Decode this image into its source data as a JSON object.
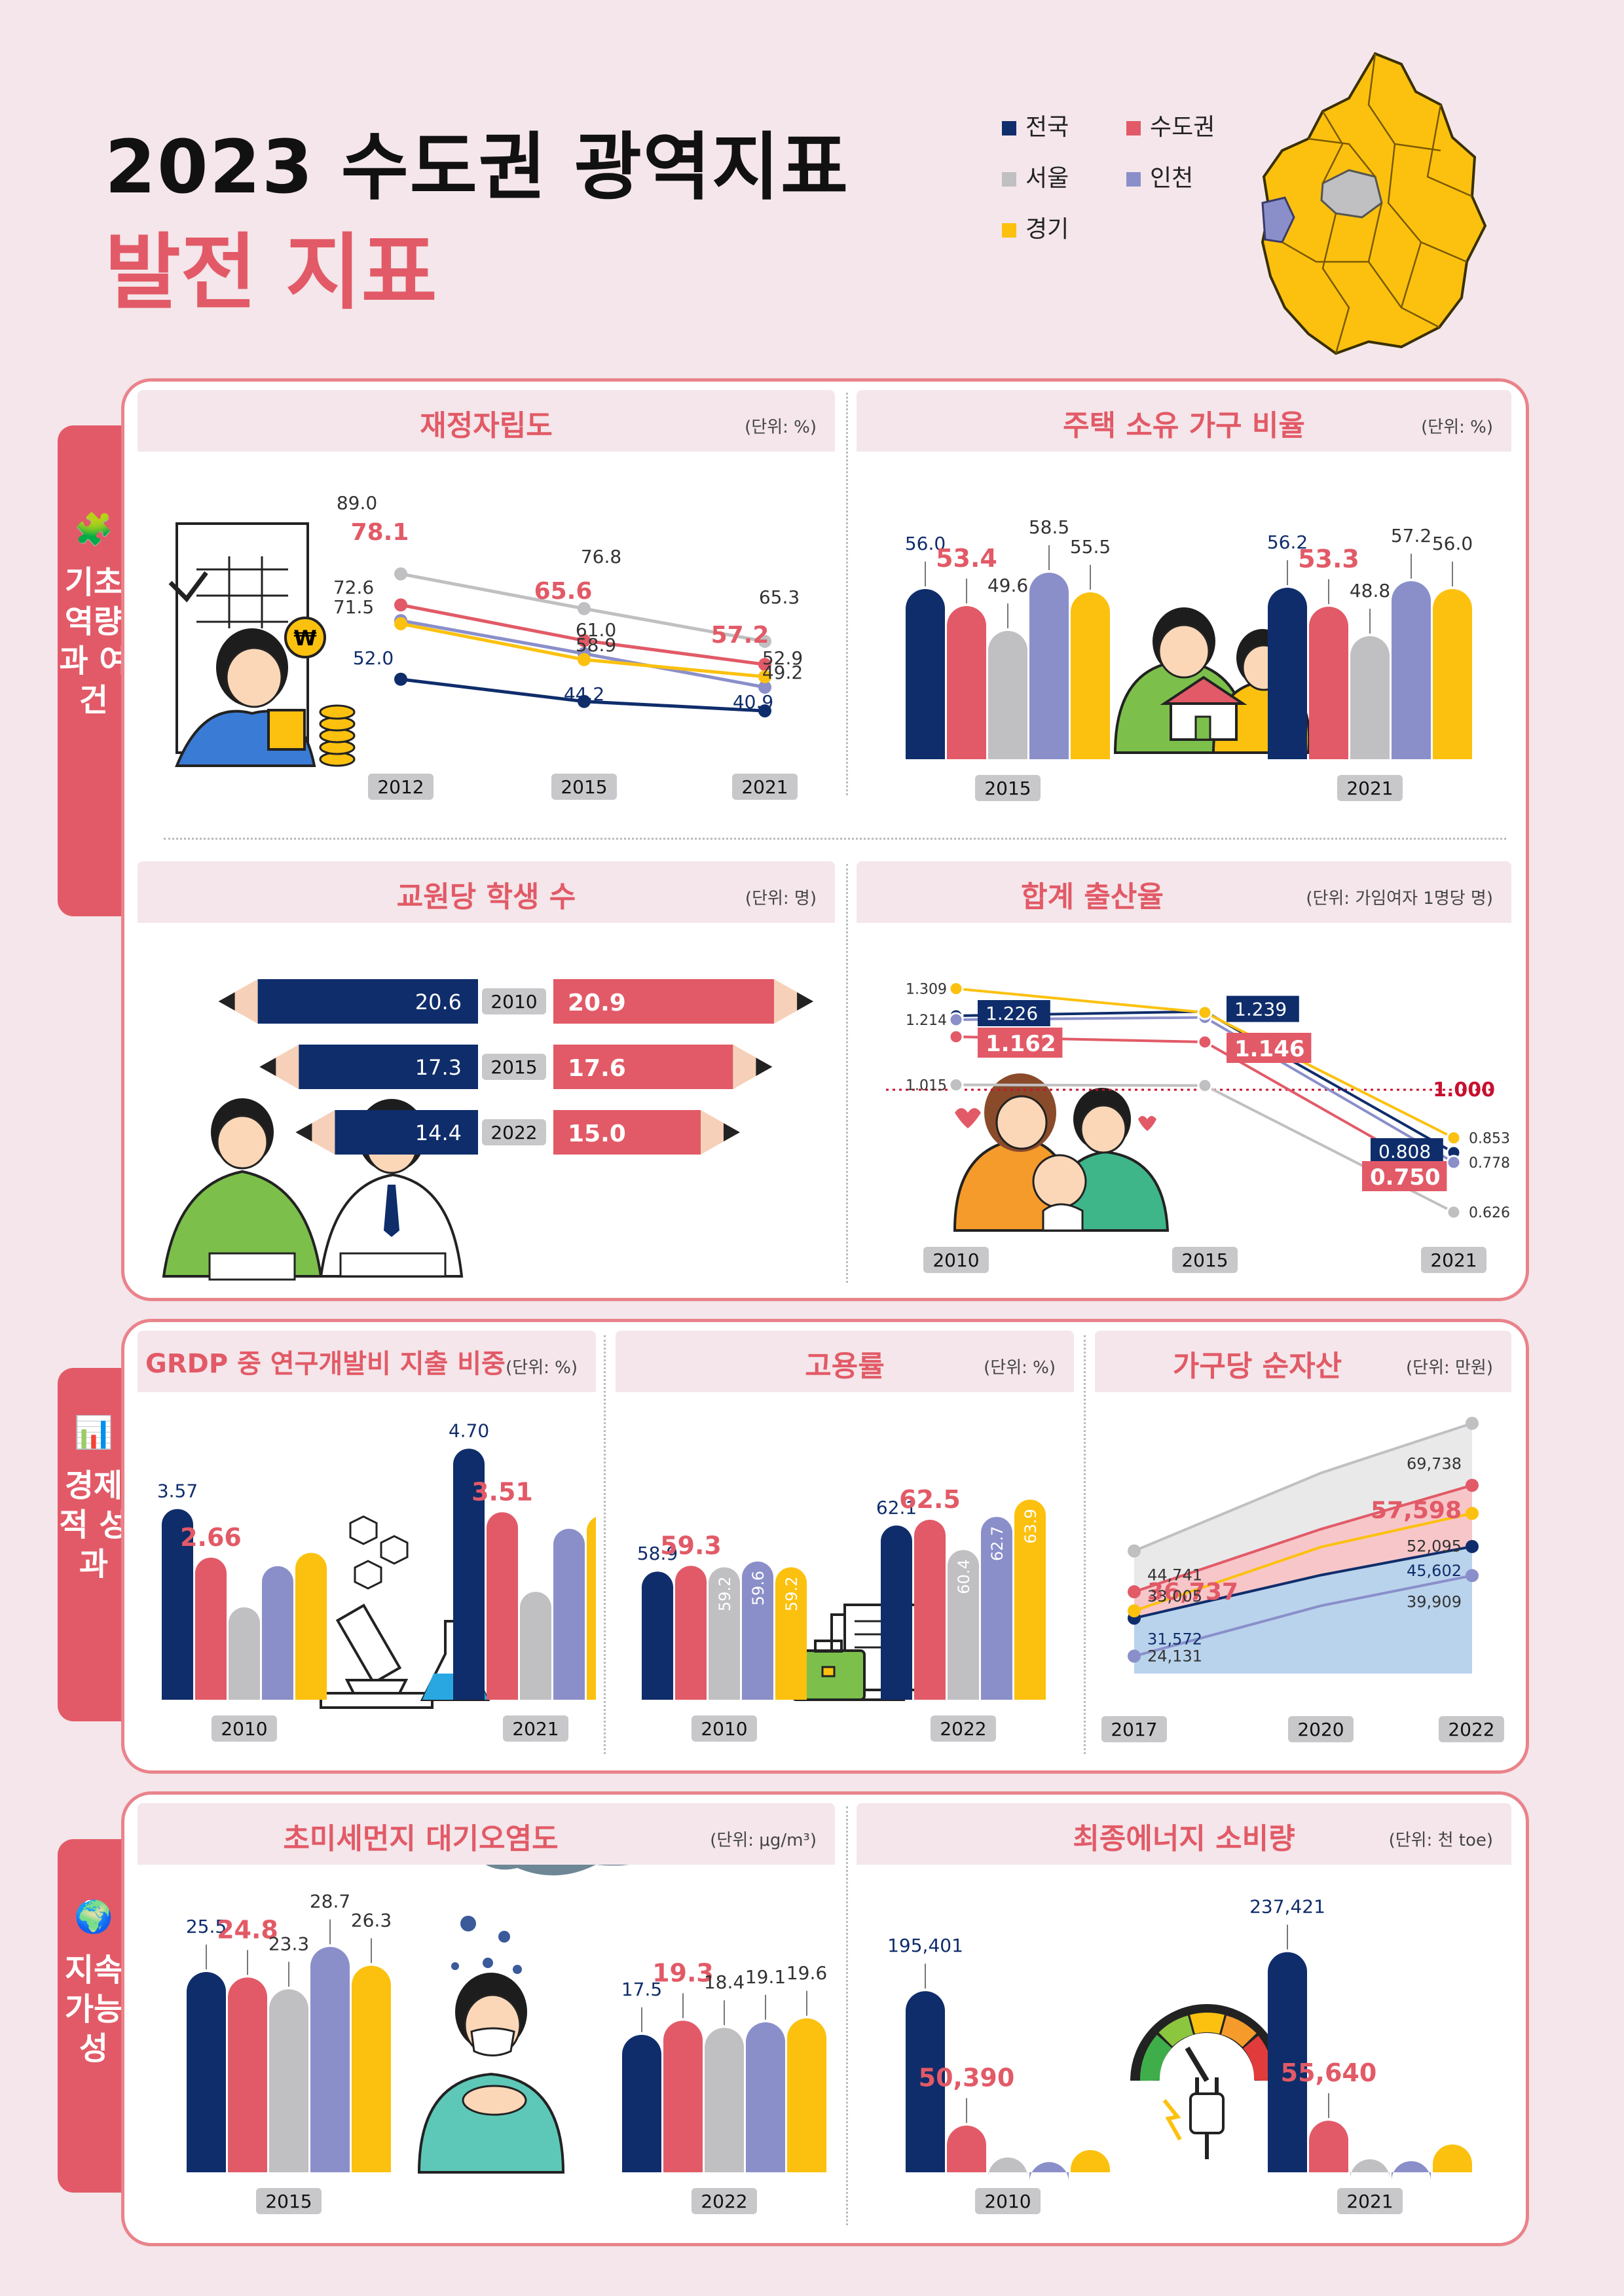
{
  "header": {
    "title": "2023 수도권 광역지표",
    "subtitle": "발전 지표"
  },
  "legend": [
    {
      "name": "전국",
      "color": "#0f2d6b"
    },
    {
      "name": "수도권",
      "color": "#e25a67"
    },
    {
      "name": "서울",
      "color": "#c0c0c3"
    },
    {
      "name": "인천",
      "color": "#8a8fca"
    },
    {
      "name": "경기",
      "color": "#fcc10f"
    }
  ],
  "sections": [
    {
      "label": "기초 역량과 여건"
    },
    {
      "label": "경제적 성과"
    },
    {
      "label": "지속가능성"
    }
  ],
  "chart_data": [
    {
      "id": "fiscal",
      "type": "line",
      "title": "재정자립도",
      "unit": "(단위: %)",
      "x": [
        "2012",
        "2015",
        "2021"
      ],
      "series": [
        {
          "name": "전국",
          "values": [
            52.0,
            44.2,
            40.9
          ]
        },
        {
          "name": "수도권",
          "values": [
            78.1,
            65.6,
            57.2
          ]
        },
        {
          "name": "서울",
          "values": [
            89.0,
            76.8,
            65.3
          ]
        },
        {
          "name": "인천",
          "values": [
            72.6,
            61.0,
            49.2
          ]
        },
        {
          "name": "경기",
          "values": [
            71.5,
            58.9,
            52.9
          ]
        }
      ]
    },
    {
      "id": "housing",
      "type": "bar",
      "title": "주택 소유 가구 비율",
      "unit": "(단위: %)",
      "categories": [
        "2015",
        "2021"
      ],
      "series": [
        {
          "name": "전국",
          "values": [
            56.0,
            56.2
          ]
        },
        {
          "name": "수도권",
          "values": [
            53.4,
            53.3
          ]
        },
        {
          "name": "서울",
          "values": [
            49.6,
            48.8
          ]
        },
        {
          "name": "인천",
          "values": [
            58.5,
            57.2
          ]
        },
        {
          "name": "경기",
          "values": [
            55.5,
            56.0
          ]
        }
      ]
    },
    {
      "id": "students",
      "type": "bar",
      "title": "교원당 학생 수",
      "unit": "(단위: 명)",
      "categories": [
        "2010",
        "2015",
        "2022"
      ],
      "series": [
        {
          "name": "전국",
          "values": [
            20.6,
            17.3,
            14.4
          ]
        },
        {
          "name": "수도권",
          "values": [
            20.9,
            17.6,
            15.0
          ]
        }
      ]
    },
    {
      "id": "fertility",
      "type": "line",
      "title": "합계 출산율",
      "unit": "(단위: 가임여자 1명당 명)",
      "x": [
        "2010",
        "2015",
        "2021"
      ],
      "reference": "1.000",
      "series": [
        {
          "name": "전국",
          "values": [
            1.226,
            1.239,
            0.808
          ]
        },
        {
          "name": "수도권",
          "values": [
            1.162,
            1.146,
            0.75
          ]
        },
        {
          "name": "서울",
          "values": [
            1.015,
            null,
            0.626
          ]
        },
        {
          "name": "인천",
          "values": [
            1.214,
            null,
            0.778
          ]
        },
        {
          "name": "경기",
          "values": [
            1.309,
            null,
            0.853
          ]
        }
      ]
    },
    {
      "id": "grdp",
      "type": "bar",
      "title": "GRDP 중 연구개발비 지출 비중",
      "unit": "(단위: %)",
      "categories": [
        "2010",
        "2021"
      ],
      "series": [
        {
          "name": "전국",
          "values": [
            3.57,
            4.7
          ]
        },
        {
          "name": "수도권",
          "values": [
            2.66,
            3.51
          ]
        },
        {
          "name": "서울",
          "values": [
            1.73,
            2.02
          ]
        },
        {
          "name": "인천",
          "values": [
            2.5,
            3.2
          ]
        },
        {
          "name": "경기",
          "values": [
            2.75,
            3.45
          ]
        }
      ]
    },
    {
      "id": "employment",
      "type": "bar",
      "title": "고용률",
      "unit": "(단위: %)",
      "categories": [
        "2010",
        "2022"
      ],
      "series": [
        {
          "name": "전국",
          "values": [
            58.9,
            62.1
          ]
        },
        {
          "name": "수도권",
          "values": [
            59.3,
            62.5
          ]
        },
        {
          "name": "서울",
          "values": [
            59.2,
            60.4
          ]
        },
        {
          "name": "인천",
          "values": [
            59.6,
            62.7
          ]
        },
        {
          "name": "경기",
          "values": [
            59.2,
            63.9
          ]
        }
      ]
    },
    {
      "id": "assets",
      "type": "area",
      "title": "가구당 순자산",
      "unit": "(단위: 만원)",
      "x": [
        "2017",
        "2020",
        "2022"
      ],
      "series": [
        {
          "name": "전국",
          "values": [
            31572,
            null,
            45602
          ]
        },
        {
          "name": "수도권",
          "values": [
            36737,
            null,
            57598
          ]
        },
        {
          "name": "서울",
          "values": [
            44741,
            null,
            69738
          ]
        },
        {
          "name": "인천",
          "values": [
            24131,
            null,
            39909
          ]
        },
        {
          "name": "경기",
          "values": [
            33005,
            null,
            52095
          ]
        }
      ]
    },
    {
      "id": "pm",
      "type": "bar",
      "title": "초미세먼지 대기오염도",
      "unit": "(단위: μg/m³)",
      "categories": [
        "2015",
        "2022"
      ],
      "series": [
        {
          "name": "전국",
          "values": [
            25.5,
            17.5
          ]
        },
        {
          "name": "수도권",
          "values": [
            24.8,
            19.3
          ]
        },
        {
          "name": "서울",
          "values": [
            23.3,
            18.4
          ]
        },
        {
          "name": "인천",
          "values": [
            28.7,
            19.1
          ]
        },
        {
          "name": "경기",
          "values": [
            26.3,
            19.6
          ]
        }
      ]
    },
    {
      "id": "energy",
      "type": "bar",
      "title": "최종에너지 소비량",
      "unit": "(단위: 천 toe)",
      "categories": [
        "2010",
        "2021"
      ],
      "series": [
        {
          "name": "전국",
          "values": [
            195401,
            237421
          ]
        },
        {
          "name": "수도권",
          "values": [
            50390,
            55640
          ]
        },
        {
          "name": "서울",
          "values": [
            16000,
            14000
          ]
        },
        {
          "name": "인천",
          "values": [
            11000,
            12000
          ]
        },
        {
          "name": "경기",
          "values": [
            24000,
            30000
          ]
        }
      ]
    }
  ]
}
